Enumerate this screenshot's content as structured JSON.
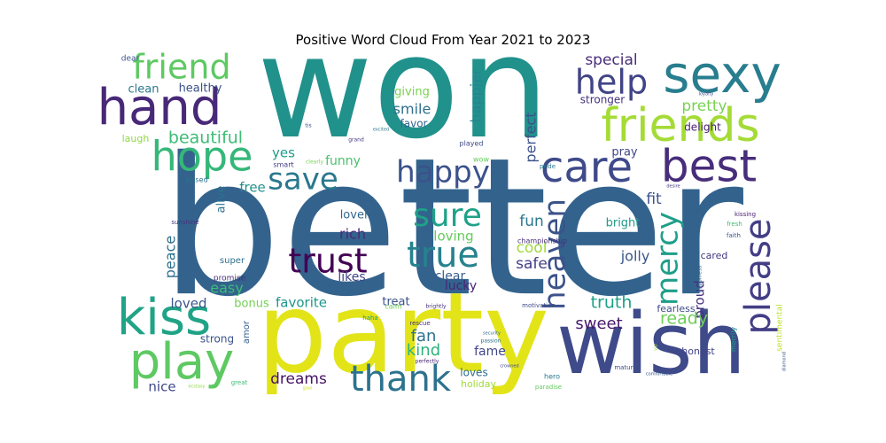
{
  "title": "Positive Word Cloud From Year 2021 to 2023",
  "words": [
    {
      "text": "better",
      "color": "#33638d"
    },
    {
      "text": "won",
      "color": "#21918c"
    },
    {
      "text": "party",
      "color": "#e2e418"
    },
    {
      "text": "wish",
      "color": "#3e4a89"
    },
    {
      "text": "hand",
      "color": "#482878"
    },
    {
      "text": "sexy",
      "color": "#287d8e"
    },
    {
      "text": "friends",
      "color": "#a5db36"
    },
    {
      "text": "friend",
      "color": "#5ec962"
    },
    {
      "text": "kiss",
      "color": "#20a386"
    },
    {
      "text": "play",
      "color": "#5ec962"
    },
    {
      "text": "hope",
      "color": "#35b779"
    },
    {
      "text": "care",
      "color": "#3e4a89"
    },
    {
      "text": "best",
      "color": "#472d7b"
    },
    {
      "text": "help",
      "color": "#414487"
    },
    {
      "text": "save",
      "color": "#2a788e"
    },
    {
      "text": "happy",
      "color": "#3b528b"
    },
    {
      "text": "thank",
      "color": "#2c728e"
    },
    {
      "text": "trust",
      "color": "#440154"
    },
    {
      "text": "true",
      "color": "#26828e"
    },
    {
      "text": "sure",
      "color": "#1fa188"
    },
    {
      "text": "heaven",
      "color": "#3b528b"
    },
    {
      "text": "mercy",
      "color": "#1f9e89"
    },
    {
      "text": "please",
      "color": "#433e85"
    },
    {
      "text": "beautiful",
      "color": "#3dbc74"
    },
    {
      "text": "pretty",
      "color": "#7ad151"
    },
    {
      "text": "special",
      "color": "#472d7b"
    },
    {
      "text": "clean",
      "color": "#2a788e"
    },
    {
      "text": "healthy",
      "color": "#3b528b"
    },
    {
      "text": "laugh",
      "color": "#8fd744"
    },
    {
      "text": "yes",
      "color": "#1e9c89"
    },
    {
      "text": "smile",
      "color": "#2e6f8e"
    },
    {
      "text": "giving",
      "color": "#7ad151"
    },
    {
      "text": "favor",
      "color": "#32658e"
    },
    {
      "text": "happier",
      "color": "#25848e"
    },
    {
      "text": "perfect",
      "color": "#3b528b"
    },
    {
      "text": "stronger",
      "color": "#46327e"
    },
    {
      "text": "delight",
      "color": "#481f70"
    },
    {
      "text": "fit",
      "color": "#3b528b"
    },
    {
      "text": "funny",
      "color": "#4ac16d"
    },
    {
      "text": "free",
      "color": "#21918c"
    },
    {
      "text": "alive",
      "color": "#2c728e"
    },
    {
      "text": "lover",
      "color": "#31688e"
    },
    {
      "text": "rich",
      "color": "#482878"
    },
    {
      "text": "loving",
      "color": "#65cb5e"
    },
    {
      "text": "fun",
      "color": "#2a788e"
    },
    {
      "text": "cool",
      "color": "#9fda3a"
    },
    {
      "text": "safe",
      "color": "#433e85"
    },
    {
      "text": "bright",
      "color": "#1f9a8a"
    },
    {
      "text": "jolly",
      "color": "#39568c"
    },
    {
      "text": "peace",
      "color": "#2d708e"
    },
    {
      "text": "easy",
      "color": "#3dbc74"
    },
    {
      "text": "likes",
      "color": "#414487"
    },
    {
      "text": "clear",
      "color": "#365c8d"
    },
    {
      "text": "lucky",
      "color": "#482475"
    },
    {
      "text": "truth",
      "color": "#1fa088"
    },
    {
      "text": "proud",
      "color": "#46327e"
    },
    {
      "text": "cared",
      "color": "#453781"
    },
    {
      "text": "ready",
      "color": "#6ece58"
    },
    {
      "text": "sweet",
      "color": "#48186a"
    },
    {
      "text": "loved",
      "color": "#3a548c"
    },
    {
      "text": "bonus",
      "color": "#75d054"
    },
    {
      "text": "favorite",
      "color": "#1f958b"
    },
    {
      "text": "treat",
      "color": "#3b528b"
    },
    {
      "text": "fan",
      "color": "#2c728e"
    },
    {
      "text": "kind",
      "color": "#2db27d"
    },
    {
      "text": "fame",
      "color": "#404688"
    },
    {
      "text": "dreams",
      "color": "#471365"
    },
    {
      "text": "loves",
      "color": "#2e6e8e"
    },
    {
      "text": "holiday",
      "color": "#a0da39"
    },
    {
      "text": "nice",
      "color": "#3f4788"
    },
    {
      "text": "strong",
      "color": "#3b528b"
    },
    {
      "text": "amor",
      "color": "#355f8d"
    },
    {
      "text": "super",
      "color": "#2c718e"
    },
    {
      "text": "promise",
      "color": "#472c7a"
    },
    {
      "text": "calm",
      "color": "#6ccd5a"
    },
    {
      "text": "fearless",
      "color": "#3e4c8a"
    },
    {
      "text": "honest",
      "color": "#414487"
    },
    {
      "text": "sentimental",
      "color": "#bddf26"
    },
    {
      "text": "merrily",
      "color": "#1f968b"
    },
    {
      "text": "wow",
      "color": "#65cb5e"
    },
    {
      "text": "played",
      "color": "#3e4989"
    },
    {
      "text": "pray",
      "color": "#404688"
    },
    {
      "text": "smart",
      "color": "#423f85"
    },
    {
      "text": "dear",
      "color": "#3b528b"
    },
    {
      "text": "sunshine",
      "color": "#46327e"
    },
    {
      "text": "kissed",
      "color": "#2c728e"
    },
    {
      "text": "championship",
      "color": "#472d7b"
    },
    {
      "text": "kissing",
      "color": "#481b6d"
    },
    {
      "text": "fresh",
      "color": "#3dbc74"
    },
    {
      "text": "faith",
      "color": "#3b528b"
    },
    {
      "text": "happiness",
      "color": "#31688e"
    },
    {
      "text": "motivation",
      "color": "#3e4c8a"
    },
    {
      "text": "haha",
      "color": "#1f9a8a"
    },
    {
      "text": "brightly",
      "color": "#46337f"
    },
    {
      "text": "rescue",
      "color": "#472f7d"
    },
    {
      "text": "perfectly",
      "color": "#482475"
    },
    {
      "text": "passion",
      "color": "#2d708e"
    },
    {
      "text": "security",
      "color": "#306a8e"
    },
    {
      "text": "mature",
      "color": "#3d4e8a"
    },
    {
      "text": "hero",
      "color": "#2a778e"
    },
    {
      "text": "paradise",
      "color": "#63cb5f"
    },
    {
      "text": "great",
      "color": "#3dbc74"
    },
    {
      "text": "grand",
      "color": "#453882"
    },
    {
      "text": "pride",
      "color": "#2a768e"
    },
    {
      "text": "desire",
      "color": "#46307e"
    },
    {
      "text": "tis",
      "color": "#3b528b"
    },
    {
      "text": "clearly",
      "color": "#7ad151"
    },
    {
      "text": "excited",
      "color": "#2a788e"
    },
    {
      "text": "loyalty",
      "color": "#3d4e8a"
    },
    {
      "text": "comfortable",
      "color": "#38588c"
    },
    {
      "text": "diamond",
      "color": "#39568c"
    },
    {
      "text": "crowned",
      "color": "#3e4989"
    },
    {
      "text": "vip",
      "color": "#8fd744"
    },
    {
      "text": "ecstasy",
      "color": "#8fd744"
    },
    {
      "text": "goal",
      "color": "#d2e21b"
    }
  ]
}
